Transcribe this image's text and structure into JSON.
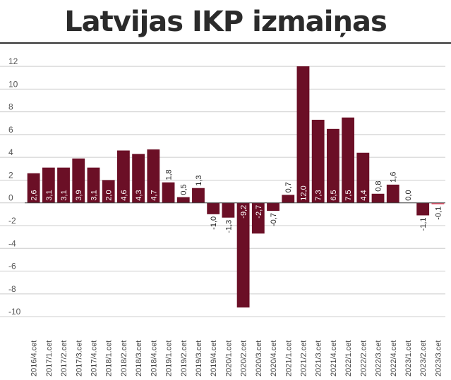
{
  "chart_data": {
    "type": "bar",
    "title": "Latvijas IKP izmaiņas",
    "xlabel": "",
    "ylabel": "",
    "ylim": [
      -10.8,
      12.5
    ],
    "yticks": [
      12,
      10,
      8,
      6,
      4,
      2,
      0,
      -2,
      -4,
      -6,
      -8,
      -10
    ],
    "grid": true,
    "categories": [
      "2016/4.cet",
      "2017/1.cet",
      "2017/2.cet",
      "2017/3.cet",
      "2017/4.cet",
      "2018/1.cet",
      "2018/2.cet",
      "2018/3.cet",
      "2018/4.cet",
      "2019/1.cet",
      "2019/2.cet",
      "2019/3.cet",
      "2019/4.cet",
      "2020/1.cet",
      "2020/2.cet",
      "2020/3.cet",
      "2020/4.cet",
      "2021/1.cet",
      "2021/2.cet",
      "2021/3.cet",
      "2021/4.cet",
      "2022/1.cet",
      "2022/2.cet",
      "2022/3.cet",
      "2022/4.cet",
      "2023/1.cet",
      "2023/2.cet",
      "2023/3.cet"
    ],
    "values": [
      2.6,
      3.1,
      3.1,
      3.9,
      3.1,
      2.0,
      4.6,
      4.3,
      4.7,
      1.8,
      0.5,
      1.3,
      -1.0,
      -1.3,
      -9.2,
      -2.7,
      -0.7,
      0.7,
      12.0,
      7.3,
      6.5,
      7.5,
      4.4,
      0.8,
      1.6,
      0.0,
      -1.1,
      -0.1
    ],
    "value_labels": [
      "2,6",
      "3,1",
      "3,1",
      "3,9",
      "3,1",
      "2,0",
      "4,6",
      "4,3",
      "4,7",
      "1,8",
      "0,5",
      "1,3",
      "-1,0",
      "-1,3",
      "-9,2",
      "-2,7",
      "-0,7",
      "0,7",
      "12,0",
      "7,3",
      "6,5",
      "7,5",
      "4,4",
      "0,8",
      "1,6",
      "0,0",
      "-1,1",
      "-0,1"
    ],
    "colors": {
      "bar": "#6b0f26",
      "highlight": "#e8506a",
      "grid": "#cccccc",
      "axis": "#444444"
    },
    "highlight_index": 27
  }
}
